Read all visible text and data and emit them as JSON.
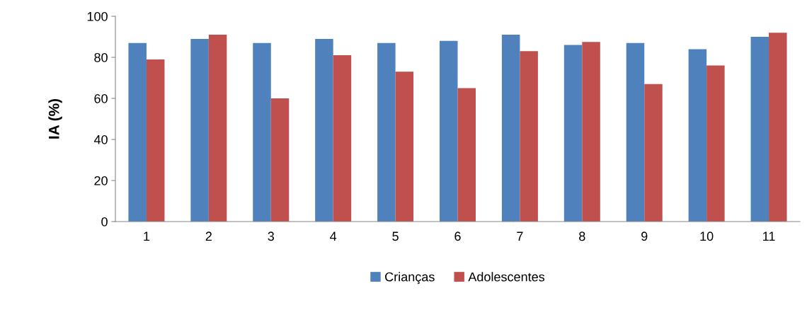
{
  "chart_data": {
    "type": "bar",
    "ylabel": "IA (%)",
    "categories": [
      "1",
      "2",
      "3",
      "4",
      "5",
      "6",
      "7",
      "8",
      "9",
      "10",
      "11"
    ],
    "series": [
      {
        "name": "Crianças",
        "color": "#4f81bd",
        "values": [
          87,
          89,
          87,
          89,
          87,
          88,
          91,
          86,
          87,
          84,
          90
        ]
      },
      {
        "name": "Adolescentes",
        "color": "#c0504d",
        "values": [
          79,
          91,
          60,
          81,
          73,
          65,
          83,
          87.5,
          67,
          76,
          92
        ]
      }
    ],
    "ylim": [
      0,
      100
    ],
    "yticks": [
      0,
      20,
      40,
      60,
      80,
      100
    ],
    "grid": false,
    "legend": "bottom"
  }
}
